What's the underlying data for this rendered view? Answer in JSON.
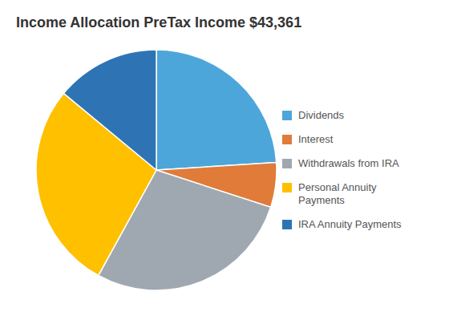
{
  "chart_data": {
    "type": "pie",
    "title": "Income Allocation PreTax Income $43,361",
    "categories": [
      "Dividends",
      "Interest",
      "Withdrawals from IRA",
      "Personal Annuity\nPayments",
      "IRA Annuity Payments"
    ],
    "values": [
      24,
      6,
      28,
      28,
      14
    ],
    "colors": [
      "#4da6d9",
      "#e07b39",
      "#9fa8b0",
      "#ffc000",
      "#2e74b5"
    ],
    "legend": "right"
  }
}
